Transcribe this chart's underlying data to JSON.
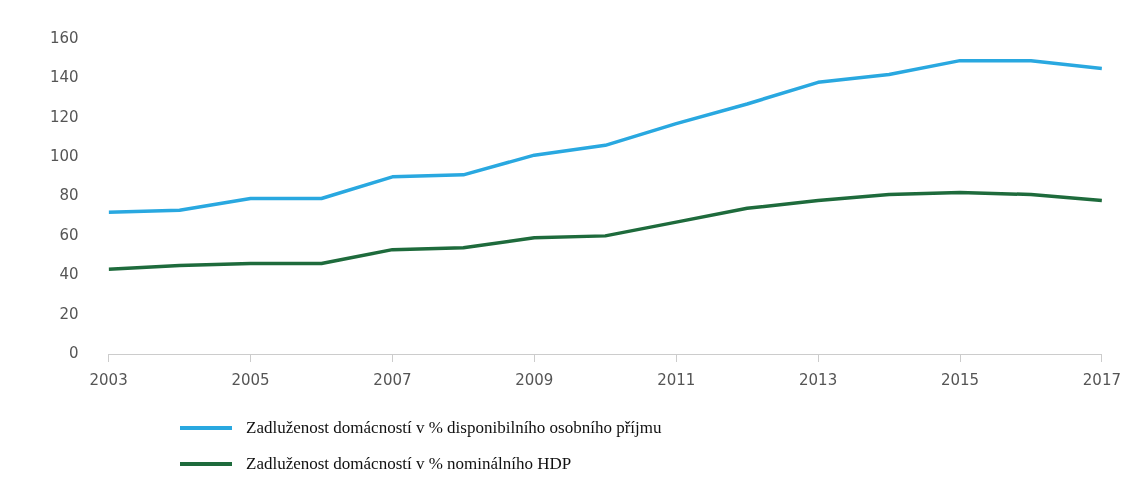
{
  "chart_data": {
    "type": "line",
    "x": [
      2003,
      2004,
      2005,
      2006,
      2007,
      2008,
      2009,
      2010,
      2011,
      2012,
      2013,
      2014,
      2015,
      2016,
      2017
    ],
    "series": [
      {
        "name": "Zadluženost domácností v % disponibilního osobního příjmu",
        "color": "#29a8e0",
        "values": [
          72,
          73,
          79,
          79,
          90,
          91,
          101,
          106,
          117,
          127,
          138,
          142,
          149,
          149,
          145
        ]
      },
      {
        "name": "Zadluženost domácností v % nominálního HDP",
        "color": "#1e6b3c",
        "values": [
          43,
          45,
          46,
          46,
          53,
          54,
          59,
          60,
          67,
          74,
          78,
          81,
          82,
          81,
          78
        ]
      }
    ],
    "xlim": [
      2003,
      2017
    ],
    "xticks": [
      2003,
      2005,
      2007,
      2009,
      2011,
      2013,
      2015,
      2017
    ],
    "ylim": [
      0,
      160
    ],
    "yticks": [
      0,
      20,
      40,
      60,
      80,
      100,
      120,
      140,
      160
    ],
    "grid": false,
    "legend": "bottom",
    "marker": "none",
    "line_style": "solid"
  }
}
